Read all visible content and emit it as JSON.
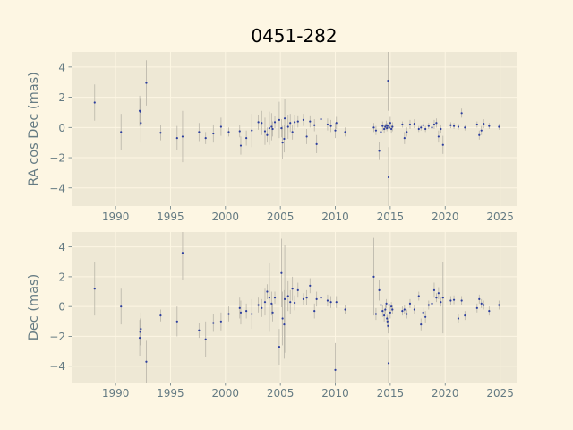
{
  "chart_data": [
    {
      "type": "scatter",
      "title": "0451-282",
      "xlabel": "",
      "ylabel": "RA cos Dec (mas)",
      "xlim": [
        1986,
        2026.5
      ],
      "ylim": [
        -5.2,
        5.0
      ],
      "xticks": [
        1990,
        1995,
        2000,
        2005,
        2010,
        2015,
        2020,
        2025
      ],
      "yticks": [
        -4,
        -2,
        0,
        2,
        4
      ],
      "grid": true,
      "points": [
        {
          "x": 1988.1,
          "y": 1.65,
          "e": 1.2
        },
        {
          "x": 1990.5,
          "y": -0.3,
          "e": 1.2
        },
        {
          "x": 1992.2,
          "y": 1.1,
          "e": 1.0
        },
        {
          "x": 1992.25,
          "y": 1.05,
          "e": 0.9
        },
        {
          "x": 1992.3,
          "y": 0.3,
          "e": 1.3
        },
        {
          "x": 1992.8,
          "y": 2.95,
          "e": 1.5
        },
        {
          "x": 1994.1,
          "y": -0.35,
          "e": 0.5
        },
        {
          "x": 1995.6,
          "y": -0.7,
          "e": 0.8
        },
        {
          "x": 1996.1,
          "y": -0.6,
          "e": 1.7
        },
        {
          "x": 1997.6,
          "y": -0.3,
          "e": 0.6
        },
        {
          "x": 1998.2,
          "y": -0.7,
          "e": 0.4
        },
        {
          "x": 1998.9,
          "y": -0.4,
          "e": 0.6
        },
        {
          "x": 1999.6,
          "y": 0.05,
          "e": 0.6
        },
        {
          "x": 2000.3,
          "y": -0.3,
          "e": 0.3
        },
        {
          "x": 2001.3,
          "y": -0.25,
          "e": 0.4
        },
        {
          "x": 2001.4,
          "y": -1.2,
          "e": 0.6
        },
        {
          "x": 2001.9,
          "y": -0.7,
          "e": 0.5
        },
        {
          "x": 2002.4,
          "y": -0.2,
          "e": 1.1
        },
        {
          "x": 2003.0,
          "y": 0.35,
          "e": 0.5
        },
        {
          "x": 2003.3,
          "y": 0.3,
          "e": 0.8
        },
        {
          "x": 2003.6,
          "y": -0.25,
          "e": 0.9
        },
        {
          "x": 2003.8,
          "y": -0.5,
          "e": 0.5
        },
        {
          "x": 2004.0,
          "y": -0.05,
          "e": 1.1
        },
        {
          "x": 2004.2,
          "y": 0.05,
          "e": 0.9
        },
        {
          "x": 2004.3,
          "y": -0.1,
          "e": 0.5
        },
        {
          "x": 2004.5,
          "y": 0.35,
          "e": 0.4
        },
        {
          "x": 2004.9,
          "y": 0.5,
          "e": 1.2
        },
        {
          "x": 2005.1,
          "y": -0.05,
          "e": 0.6
        },
        {
          "x": 2005.2,
          "y": -1.0,
          "e": 1.1
        },
        {
          "x": 2005.35,
          "y": -0.75,
          "e": 0.9
        },
        {
          "x": 2005.4,
          "y": 0.6,
          "e": 1.3
        },
        {
          "x": 2005.7,
          "y": 0.05,
          "e": 0.8
        },
        {
          "x": 2005.9,
          "y": 0.3,
          "e": 0.6
        },
        {
          "x": 2006.1,
          "y": -0.3,
          "e": 0.5
        },
        {
          "x": 2006.3,
          "y": 0.35,
          "e": 0.5
        },
        {
          "x": 2006.6,
          "y": 0.4,
          "e": 0.4
        },
        {
          "x": 2007.1,
          "y": 0.5,
          "e": 0.4
        },
        {
          "x": 2007.4,
          "y": -0.6,
          "e": 0.5
        },
        {
          "x": 2007.7,
          "y": 0.4,
          "e": 0.4
        },
        {
          "x": 2008.1,
          "y": 0.15,
          "e": 0.4
        },
        {
          "x": 2008.3,
          "y": -1.1,
          "e": 0.6
        },
        {
          "x": 2008.7,
          "y": 0.55,
          "e": 0.5
        },
        {
          "x": 2009.3,
          "y": 0.2,
          "e": 0.4
        },
        {
          "x": 2009.6,
          "y": 0.1,
          "e": 0.4
        },
        {
          "x": 2010.0,
          "y": -0.2,
          "e": 0.5
        },
        {
          "x": 2010.1,
          "y": 0.3,
          "e": 0.4
        },
        {
          "x": 2010.9,
          "y": -0.3,
          "e": 0.3
        },
        {
          "x": 2013.5,
          "y": 0.0,
          "e": 0.3
        },
        {
          "x": 2013.7,
          "y": -0.2,
          "e": 0.3
        },
        {
          "x": 2014.0,
          "y": -1.55,
          "e": 0.6
        },
        {
          "x": 2014.15,
          "y": -0.3,
          "e": 0.4
        },
        {
          "x": 2014.3,
          "y": 0.1,
          "e": 0.3
        },
        {
          "x": 2014.45,
          "y": -0.1,
          "e": 0.3
        },
        {
          "x": 2014.55,
          "y": 0.05,
          "e": 0.2
        },
        {
          "x": 2014.65,
          "y": 0.15,
          "e": 0.3
        },
        {
          "x": 2014.7,
          "y": -0.05,
          "e": 0.2
        },
        {
          "x": 2014.75,
          "y": 0.1,
          "e": 0.2
        },
        {
          "x": 2014.8,
          "y": 3.1,
          "e": 2.0
        },
        {
          "x": 2014.85,
          "y": -3.3,
          "e": 2.0
        },
        {
          "x": 2014.9,
          "y": 0.0,
          "e": 0.3
        },
        {
          "x": 2015.0,
          "y": 0.3,
          "e": 0.4
        },
        {
          "x": 2015.1,
          "y": -0.1,
          "e": 0.3
        },
        {
          "x": 2015.2,
          "y": 0.05,
          "e": 0.3
        },
        {
          "x": 2016.1,
          "y": 0.2,
          "e": 0.2
        },
        {
          "x": 2016.3,
          "y": -0.7,
          "e": 0.4
        },
        {
          "x": 2016.5,
          "y": -0.3,
          "e": 0.3
        },
        {
          "x": 2016.8,
          "y": 0.2,
          "e": 0.3
        },
        {
          "x": 2017.2,
          "y": 0.25,
          "e": 0.3
        },
        {
          "x": 2017.6,
          "y": -0.1,
          "e": 0.2
        },
        {
          "x": 2017.8,
          "y": 0.0,
          "e": 0.2
        },
        {
          "x": 2018.0,
          "y": 0.15,
          "e": 0.3
        },
        {
          "x": 2018.2,
          "y": -0.1,
          "e": 0.2
        },
        {
          "x": 2018.5,
          "y": 0.1,
          "e": 0.2
        },
        {
          "x": 2018.8,
          "y": 0.0,
          "e": 0.3
        },
        {
          "x": 2019.0,
          "y": 0.2,
          "e": 0.3
        },
        {
          "x": 2019.2,
          "y": 0.3,
          "e": 0.3
        },
        {
          "x": 2019.4,
          "y": -0.6,
          "e": 0.4
        },
        {
          "x": 2019.6,
          "y": -0.1,
          "e": 0.3
        },
        {
          "x": 2019.8,
          "y": -1.15,
          "e": 0.6
        },
        {
          "x": 2020.5,
          "y": 0.15,
          "e": 0.2
        },
        {
          "x": 2020.8,
          "y": 0.1,
          "e": 0.2
        },
        {
          "x": 2021.2,
          "y": 0.05,
          "e": 0.2
        },
        {
          "x": 2021.5,
          "y": 0.95,
          "e": 0.3
        },
        {
          "x": 2021.8,
          "y": 0.0,
          "e": 0.2
        },
        {
          "x": 2022.9,
          "y": 0.2,
          "e": 0.2
        },
        {
          "x": 2023.1,
          "y": -0.5,
          "e": 0.3
        },
        {
          "x": 2023.3,
          "y": -0.2,
          "e": 0.3
        },
        {
          "x": 2023.5,
          "y": 0.25,
          "e": 0.3
        },
        {
          "x": 2024.0,
          "y": 0.1,
          "e": 0.2
        },
        {
          "x": 2024.9,
          "y": 0.05,
          "e": 0.2
        }
      ]
    },
    {
      "type": "scatter",
      "title": "",
      "xlabel": "",
      "ylabel": "Dec (mas)",
      "xlim": [
        1986,
        2026.5
      ],
      "ylim": [
        -5.1,
        5.0
      ],
      "xticks": [
        1990,
        1995,
        2000,
        2005,
        2010,
        2015,
        2020,
        2025
      ],
      "yticks": [
        -4,
        -2,
        0,
        2,
        4
      ],
      "grid": true,
      "points": [
        {
          "x": 1988.1,
          "y": 1.2,
          "e": 1.8
        },
        {
          "x": 1990.5,
          "y": 0.0,
          "e": 1.2
        },
        {
          "x": 1992.2,
          "y": -2.1,
          "e": 1.2
        },
        {
          "x": 1992.25,
          "y": -1.7,
          "e": 0.9
        },
        {
          "x": 1992.3,
          "y": -1.5,
          "e": 1.1
        },
        {
          "x": 1992.8,
          "y": -3.7,
          "e": 1.4
        },
        {
          "x": 1994.1,
          "y": -0.6,
          "e": 0.4
        },
        {
          "x": 1995.6,
          "y": -1.0,
          "e": 1.0
        },
        {
          "x": 1996.1,
          "y": 3.6,
          "e": 1.8
        },
        {
          "x": 1997.6,
          "y": -1.6,
          "e": 0.5
        },
        {
          "x": 1998.2,
          "y": -2.2,
          "e": 1.2
        },
        {
          "x": 1998.9,
          "y": -1.1,
          "e": 0.6
        },
        {
          "x": 1999.6,
          "y": -1.0,
          "e": 0.6
        },
        {
          "x": 2000.3,
          "y": -0.5,
          "e": 0.5
        },
        {
          "x": 2001.3,
          "y": -0.1,
          "e": 0.7
        },
        {
          "x": 2001.4,
          "y": -0.4,
          "e": 0.8
        },
        {
          "x": 2001.9,
          "y": -0.3,
          "e": 0.5
        },
        {
          "x": 2002.4,
          "y": -0.5,
          "e": 1.0
        },
        {
          "x": 2003.0,
          "y": 0.1,
          "e": 0.5
        },
        {
          "x": 2003.3,
          "y": -0.1,
          "e": 0.6
        },
        {
          "x": 2003.6,
          "y": 0.3,
          "e": 0.9
        },
        {
          "x": 2003.8,
          "y": 1.0,
          "e": 0.5
        },
        {
          "x": 2004.0,
          "y": 0.6,
          "e": 2.3
        },
        {
          "x": 2004.2,
          "y": 0.2,
          "e": 0.8
        },
        {
          "x": 2004.3,
          "y": -0.4,
          "e": 0.6
        },
        {
          "x": 2004.5,
          "y": 0.6,
          "e": 0.4
        },
        {
          "x": 2004.9,
          "y": -2.7,
          "e": 1.2
        },
        {
          "x": 2005.1,
          "y": 2.25,
          "e": 2.3
        },
        {
          "x": 2005.2,
          "y": -0.8,
          "e": 1.8
        },
        {
          "x": 2005.35,
          "y": -1.2,
          "e": 2.3
        },
        {
          "x": 2005.4,
          "y": 0.5,
          "e": 3.6
        },
        {
          "x": 2005.7,
          "y": 0.7,
          "e": 1.0
        },
        {
          "x": 2005.9,
          "y": 0.3,
          "e": 0.8
        },
        {
          "x": 2006.1,
          "y": 1.2,
          "e": 0.8
        },
        {
          "x": 2006.3,
          "y": 0.25,
          "e": 0.5
        },
        {
          "x": 2006.6,
          "y": 1.1,
          "e": 0.5
        },
        {
          "x": 2007.1,
          "y": 0.5,
          "e": 0.4
        },
        {
          "x": 2007.4,
          "y": 0.6,
          "e": 0.5
        },
        {
          "x": 2007.7,
          "y": 1.4,
          "e": 0.5
        },
        {
          "x": 2008.1,
          "y": -0.3,
          "e": 0.5
        },
        {
          "x": 2008.3,
          "y": 0.5,
          "e": 0.5
        },
        {
          "x": 2008.7,
          "y": 0.6,
          "e": 0.5
        },
        {
          "x": 2009.3,
          "y": 0.4,
          "e": 0.4
        },
        {
          "x": 2009.6,
          "y": 0.3,
          "e": 0.4
        },
        {
          "x": 2010.0,
          "y": -4.25,
          "e": 1.8
        },
        {
          "x": 2010.1,
          "y": 0.3,
          "e": 0.4
        },
        {
          "x": 2010.9,
          "y": -0.2,
          "e": 0.3
        },
        {
          "x": 2013.5,
          "y": 2.0,
          "e": 2.6
        },
        {
          "x": 2013.7,
          "y": -0.5,
          "e": 0.4
        },
        {
          "x": 2014.0,
          "y": 1.1,
          "e": 0.7
        },
        {
          "x": 2014.15,
          "y": 0.1,
          "e": 0.4
        },
        {
          "x": 2014.3,
          "y": -0.3,
          "e": 0.4
        },
        {
          "x": 2014.45,
          "y": -0.6,
          "e": 0.4
        },
        {
          "x": 2014.55,
          "y": -0.2,
          "e": 0.3
        },
        {
          "x": 2014.65,
          "y": 0.2,
          "e": 0.3
        },
        {
          "x": 2014.7,
          "y": -0.8,
          "e": 0.3
        },
        {
          "x": 2014.75,
          "y": -1.0,
          "e": 0.4
        },
        {
          "x": 2014.8,
          "y": -1.3,
          "e": 0.5
        },
        {
          "x": 2014.85,
          "y": -3.8,
          "e": 1.6
        },
        {
          "x": 2014.9,
          "y": 0.1,
          "e": 0.3
        },
        {
          "x": 2015.0,
          "y": -0.4,
          "e": 0.4
        },
        {
          "x": 2015.1,
          "y": 0.0,
          "e": 0.3
        },
        {
          "x": 2015.2,
          "y": -0.2,
          "e": 0.3
        },
        {
          "x": 2016.1,
          "y": -0.3,
          "e": 0.3
        },
        {
          "x": 2016.3,
          "y": -0.2,
          "e": 0.3
        },
        {
          "x": 2016.5,
          "y": -0.5,
          "e": 0.3
        },
        {
          "x": 2016.8,
          "y": 0.2,
          "e": 0.3
        },
        {
          "x": 2017.2,
          "y": -0.2,
          "e": 0.3
        },
        {
          "x": 2017.6,
          "y": 0.7,
          "e": 0.3
        },
        {
          "x": 2017.8,
          "y": -1.2,
          "e": 0.4
        },
        {
          "x": 2018.0,
          "y": -0.4,
          "e": 0.3
        },
        {
          "x": 2018.2,
          "y": -0.7,
          "e": 0.4
        },
        {
          "x": 2018.5,
          "y": 0.1,
          "e": 0.3
        },
        {
          "x": 2018.8,
          "y": 0.2,
          "e": 0.3
        },
        {
          "x": 2019.0,
          "y": 1.1,
          "e": 0.5
        },
        {
          "x": 2019.2,
          "y": 0.6,
          "e": 0.3
        },
        {
          "x": 2019.4,
          "y": 0.9,
          "e": 0.4
        },
        {
          "x": 2019.6,
          "y": 0.3,
          "e": 0.3
        },
        {
          "x": 2019.8,
          "y": 0.6,
          "e": 2.4
        },
        {
          "x": 2020.5,
          "y": 0.4,
          "e": 0.3
        },
        {
          "x": 2020.8,
          "y": 0.45,
          "e": 0.3
        },
        {
          "x": 2021.2,
          "y": -0.8,
          "e": 0.3
        },
        {
          "x": 2021.5,
          "y": 0.4,
          "e": 0.3
        },
        {
          "x": 2021.8,
          "y": -0.6,
          "e": 0.3
        },
        {
          "x": 2022.9,
          "y": -0.1,
          "e": 0.3
        },
        {
          "x": 2023.1,
          "y": 0.5,
          "e": 0.3
        },
        {
          "x": 2023.3,
          "y": 0.2,
          "e": 0.3
        },
        {
          "x": 2023.5,
          "y": 0.1,
          "e": 0.3
        },
        {
          "x": 2024.0,
          "y": -0.3,
          "e": 0.3
        },
        {
          "x": 2024.9,
          "y": 0.1,
          "e": 0.3
        }
      ]
    }
  ],
  "colors": {
    "figure_background": "#fdf6e3",
    "axes_background": "#eee8d5",
    "grid": "#fdf6e3",
    "point": "#2b3d9e",
    "errorbar": "#b8b4a8",
    "tick_label": "#657b83",
    "axis_label": "#657b83",
    "title": "#000000"
  }
}
